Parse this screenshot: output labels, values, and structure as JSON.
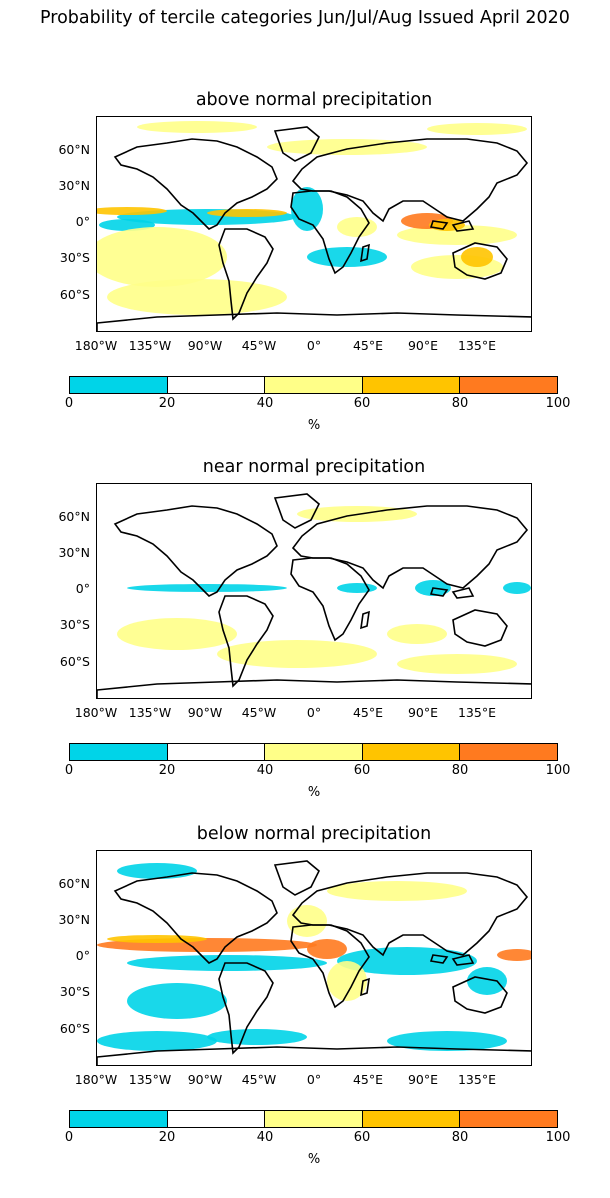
{
  "figure_title": "Probability of tercile categories Jun/Jul/Aug Issued April 2020",
  "x_ticks": [
    "180°W",
    "135°W",
    "90°W",
    "45°W",
    "0°",
    "45°E",
    "90°E",
    "135°E"
  ],
  "y_ticks": [
    "60°N",
    "30°N",
    "0°",
    "30°S",
    "60°S"
  ],
  "colorbar": {
    "ticks": [
      "0",
      "20",
      "40",
      "60",
      "80",
      "100"
    ],
    "unit": "%",
    "colors": [
      "#00d4e8",
      "#ffffff",
      "#ffff88",
      "#ffc400",
      "#ff7a1f"
    ]
  },
  "panels": [
    {
      "title": "above normal precipitation"
    },
    {
      "title": "near normal precipitation"
    },
    {
      "title": "below normal precipitation"
    }
  ]
}
